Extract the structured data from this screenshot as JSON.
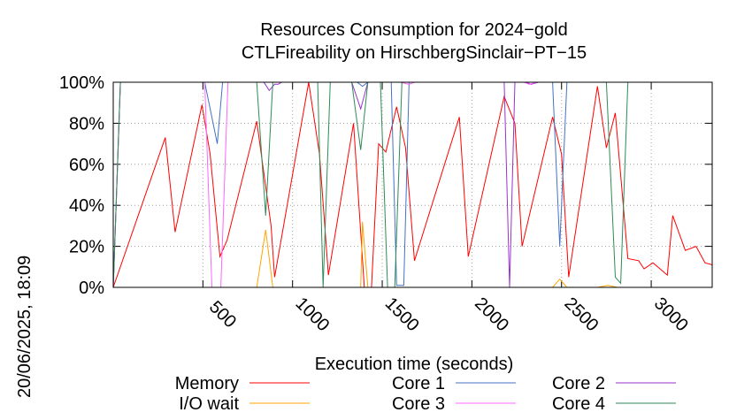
{
  "chart_data": {
    "type": "line",
    "title": [
      "Resources Consumption for 2024−gold",
      "CTLFireability on HirschbergSinclair−PT−15"
    ],
    "xlabel": "Execution time (seconds)",
    "ylabel": "",
    "side_label": "20/06/2025, 18:09",
    "xlim": [
      0,
      3340
    ],
    "ylim": [
      0,
      100
    ],
    "xticks": [
      500,
      1000,
      1500,
      2000,
      2500,
      3000
    ],
    "yticks": [
      0,
      20,
      40,
      60,
      80,
      100
    ],
    "ytick_suffix": "%",
    "grid": true,
    "legend_position": "bottom",
    "series": [
      {
        "name": "Memory",
        "color": "#ff0000",
        "points": [
          [
            0,
            0
          ],
          [
            290,
            73
          ],
          [
            345,
            27
          ],
          [
            495,
            89
          ],
          [
            540,
            65
          ],
          [
            595,
            15
          ],
          [
            635,
            23
          ],
          [
            800,
            81
          ],
          [
            880,
            30
          ],
          [
            900,
            5
          ],
          [
            1090,
            100
          ],
          [
            1150,
            65
          ],
          [
            1200,
            6
          ],
          [
            1340,
            80
          ],
          [
            1400,
            0
          ],
          [
            1440,
            0
          ],
          [
            1480,
            70
          ],
          [
            1520,
            66
          ],
          [
            1580,
            88
          ],
          [
            1630,
            68
          ],
          [
            1680,
            13
          ],
          [
            1930,
            83
          ],
          [
            1980,
            15
          ],
          [
            2180,
            93
          ],
          [
            2240,
            80
          ],
          [
            2280,
            20
          ],
          [
            2450,
            83
          ],
          [
            2500,
            65
          ],
          [
            2540,
            5
          ],
          [
            2700,
            98
          ],
          [
            2750,
            68
          ],
          [
            2800,
            85
          ],
          [
            2870,
            14
          ],
          [
            2930,
            13
          ],
          [
            2960,
            9
          ],
          [
            3010,
            12
          ],
          [
            3090,
            6
          ],
          [
            3120,
            35
          ],
          [
            3190,
            18
          ],
          [
            3250,
            20
          ],
          [
            3300,
            12
          ],
          [
            3340,
            11
          ]
        ]
      },
      {
        "name": "I/O wait",
        "color": "#ffa500",
        "points": [
          [
            0,
            0
          ],
          [
            800,
            0
          ],
          [
            850,
            28
          ],
          [
            890,
            0
          ],
          [
            1380,
            0
          ],
          [
            1390,
            32
          ],
          [
            1420,
            0
          ],
          [
            2450,
            0
          ],
          [
            2490,
            4
          ],
          [
            2530,
            0
          ],
          [
            2700,
            0
          ],
          [
            2760,
            1
          ],
          [
            2810,
            0
          ]
        ]
      },
      {
        "name": "Core 1",
        "color": "#4472c4",
        "points": [
          [
            0,
            0
          ],
          [
            40,
            100
          ],
          [
            510,
            100
          ],
          [
            580,
            70
          ],
          [
            610,
            100
          ],
          [
            1360,
            100
          ],
          [
            1390,
            98
          ],
          [
            1420,
            100
          ],
          [
            1550,
            100
          ],
          [
            1580,
            1
          ],
          [
            1620,
            1
          ],
          [
            1650,
            100
          ],
          [
            2200,
            100
          ],
          [
            2220,
            100
          ],
          [
            2450,
            100
          ],
          [
            2490,
            20
          ],
          [
            2530,
            100
          ],
          [
            3340,
            100
          ]
        ]
      },
      {
        "name": "Core 2",
        "color": "#9932cc",
        "points": [
          [
            0,
            0
          ],
          [
            40,
            100
          ],
          [
            840,
            100
          ],
          [
            870,
            96
          ],
          [
            900,
            99
          ],
          [
            920,
            99
          ],
          [
            940,
            100
          ],
          [
            1330,
            100
          ],
          [
            1380,
            87
          ],
          [
            1420,
            100
          ],
          [
            2180,
            100
          ],
          [
            2210,
            0
          ],
          [
            2240,
            100
          ],
          [
            2300,
            100
          ],
          [
            2330,
            99
          ],
          [
            2370,
            100
          ],
          [
            3340,
            100
          ]
        ]
      },
      {
        "name": "Core 3",
        "color": "#ff66ff",
        "points": [
          [
            0,
            0
          ],
          [
            40,
            100
          ],
          [
            510,
            100
          ],
          [
            550,
            0
          ],
          [
            600,
            0
          ],
          [
            640,
            100
          ],
          [
            1600,
            100
          ],
          [
            1650,
            99
          ],
          [
            1680,
            100
          ],
          [
            2290,
            100
          ],
          [
            2320,
            99
          ],
          [
            2360,
            100
          ],
          [
            3340,
            100
          ]
        ]
      },
      {
        "name": "Core 4",
        "color": "#2e8b57",
        "points": [
          [
            0,
            0
          ],
          [
            40,
            100
          ],
          [
            800,
            100
          ],
          [
            850,
            35
          ],
          [
            890,
            100
          ],
          [
            1140,
            100
          ],
          [
            1170,
            0
          ],
          [
            1210,
            100
          ],
          [
            1330,
            100
          ],
          [
            1380,
            67
          ],
          [
            1420,
            100
          ],
          [
            1490,
            100
          ],
          [
            1530,
            0
          ],
          [
            1570,
            0
          ],
          [
            1610,
            100
          ],
          [
            2750,
            100
          ],
          [
            2800,
            5
          ],
          [
            2830,
            2
          ],
          [
            2870,
            100
          ],
          [
            3340,
            100
          ]
        ]
      }
    ]
  }
}
